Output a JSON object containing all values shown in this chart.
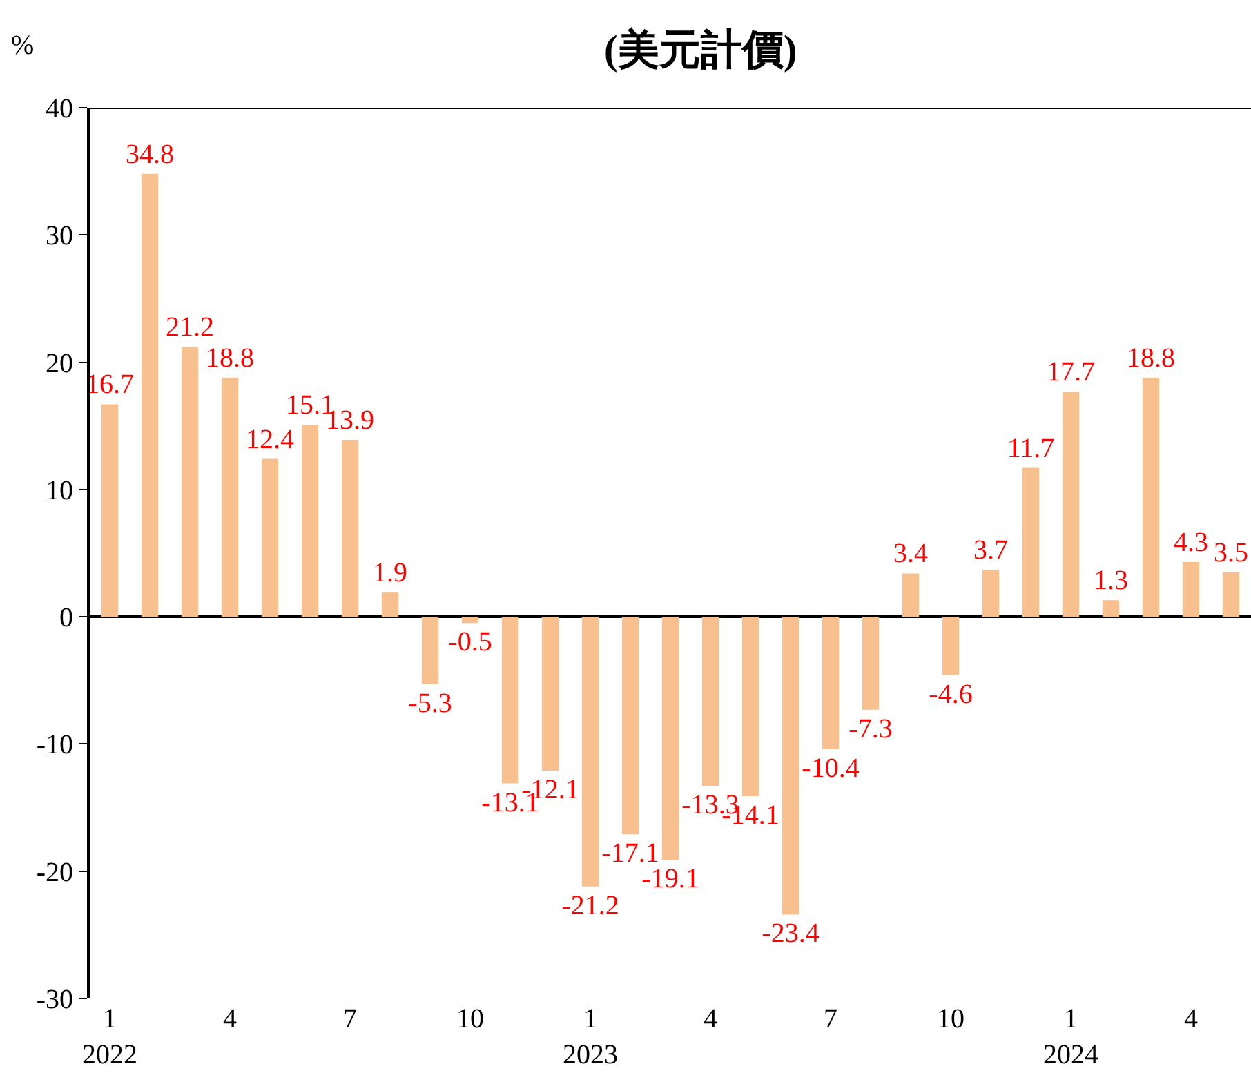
{
  "chart_data": {
    "type": "bar",
    "title": "(美元計價)",
    "ylabel": "%",
    "categories": [
      "1\n2022",
      null,
      null,
      "4",
      null,
      null,
      "7",
      null,
      null,
      "10",
      null,
      null,
      "1\n2023",
      null,
      null,
      "4",
      null,
      null,
      "7",
      null,
      null,
      "10",
      null,
      null,
      "1\n2024",
      null,
      null,
      "4",
      null
    ],
    "values": [
      16.7,
      34.8,
      21.2,
      18.8,
      12.4,
      15.1,
      13.9,
      1.9,
      -5.3,
      -0.5,
      -13.1,
      -12.1,
      -21.2,
      -17.1,
      -19.1,
      -13.3,
      -14.1,
      -23.4,
      -10.4,
      -7.3,
      3.4,
      -4.6,
      3.7,
      11.7,
      17.7,
      1.3,
      18.8,
      4.3,
      3.5
    ],
    "color": "#f9c08f",
    "ylim": [
      -30,
      40
    ],
    "yticks": [
      -30,
      -20,
      -10,
      0,
      10,
      20,
      30,
      40
    ],
    "data_labels": true,
    "legend": false
  }
}
